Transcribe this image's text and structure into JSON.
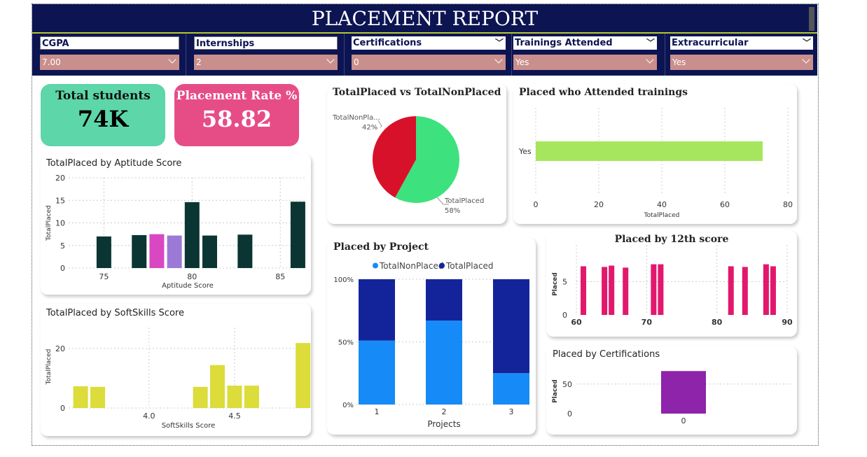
{
  "header": {
    "title": "PLACEMENT REPORT"
  },
  "slicers": [
    {
      "label": "CGPA",
      "value": "7.00"
    },
    {
      "label": "Internships",
      "value": "2"
    },
    {
      "label": "Certifications",
      "value": "0"
    },
    {
      "label": "Trainings Attended",
      "value": "Yes"
    },
    {
      "label": "Extracurricular",
      "value": "Yes"
    }
  ],
  "kpis": {
    "total_students": {
      "title": "Total students",
      "value": "74K",
      "color": "#5dd6a9"
    },
    "placement_rate": {
      "title": "Placement Rate %",
      "value": "58.82",
      "color": "#e64d87"
    }
  },
  "charts": {
    "aptitude": {
      "title": "TotalPlaced by Aptitude Score"
    },
    "softskills": {
      "title": "TotalPlaced by SoftSkills Score"
    },
    "pie": {
      "title": "TotalPlaced vs TotalNonPlaced"
    },
    "trainings": {
      "title": "Placed who Attended trainings"
    },
    "project": {
      "title": "Placed by Project"
    },
    "twelfth": {
      "title": "Placed by 12th score"
    },
    "certs": {
      "title": "Placed by Certifications"
    }
  },
  "chart_data": [
    {
      "id": "aptitude",
      "type": "bar",
      "title": "TotalPlaced by Aptitude Score",
      "xlabel": "Aptitude Score",
      "ylabel": "TotalPlaced",
      "xlim": [
        73,
        86.5
      ],
      "ylim": [
        0,
        20
      ],
      "yticks": [
        0,
        5,
        10,
        15,
        20
      ],
      "xticks": [
        75,
        80,
        85
      ],
      "x": [
        75,
        77,
        78,
        79,
        80,
        81,
        83,
        86
      ],
      "values": [
        7,
        7.3,
        7.5,
        7.2,
        14.6,
        7.2,
        7.4,
        14.7
      ],
      "colors": [
        "#0b3532",
        "#0b3532",
        "#d947c3",
        "#9b7ad6",
        "#0b3532",
        "#0b3532",
        "#0b3532",
        "#0b3532"
      ]
    },
    {
      "id": "softskills",
      "type": "bar",
      "title": "TotalPlaced by SoftSkills Score",
      "xlabel": "SoftSkills Score",
      "ylabel": "TotalPlaced",
      "xlim": [
        3.53,
        4.93
      ],
      "ylim": [
        0,
        27
      ],
      "yticks": [
        0,
        20
      ],
      "xticks": [
        "4.0",
        "4.5"
      ],
      "x": [
        3.6,
        3.7,
        4.3,
        4.4,
        4.5,
        4.6,
        4.9
      ],
      "values": [
        7.3,
        7.1,
        7.1,
        14.4,
        7.5,
        7.5,
        21.8
      ],
      "colors": [
        "#dcdc3a"
      ]
    },
    {
      "id": "pie",
      "type": "pie",
      "title": "TotalPlaced vs TotalNonPlaced",
      "slices": [
        {
          "label": "TotalPlaced",
          "value": 58,
          "display": "58%",
          "color": "#3de27e"
        },
        {
          "label": "TotalNonPla...",
          "value": 42,
          "display": "42%",
          "color": "#d8112b"
        }
      ]
    },
    {
      "id": "trainings",
      "type": "bar",
      "orientation": "horizontal",
      "title": "Placed who Attended trainings",
      "xlabel": "TotalPlaced",
      "categories": [
        "Yes"
      ],
      "values": [
        72
      ],
      "xlim": [
        0,
        80
      ],
      "xticks": [
        0,
        20,
        40,
        60,
        80
      ],
      "colors": [
        "#a6e65f"
      ]
    },
    {
      "id": "project",
      "type": "bar",
      "stacked": "percent",
      "title": "Placed by Project",
      "xlabel": "Projects",
      "categories": [
        "1",
        "2",
        "3"
      ],
      "yticks": [
        "0%",
        "50%",
        "100%"
      ],
      "series": [
        {
          "name": "TotalNonPlaced",
          "values": [
            51,
            67,
            25
          ],
          "color": "#168bf7"
        },
        {
          "name": "TotalPlaced",
          "values": [
            49,
            33,
            75
          ],
          "color": "#13249b"
        }
      ]
    },
    {
      "id": "twelfth",
      "type": "bar",
      "title": "Placed by 12th score",
      "ylabel": "Placed",
      "xlim": [
        60,
        90
      ],
      "ylim": [
        0,
        10.5
      ],
      "xticks": [
        60,
        70,
        80,
        90
      ],
      "yticks": [
        0,
        5
      ],
      "x": [
        61,
        64,
        65,
        67,
        71,
        72,
        82,
        84,
        87,
        88
      ],
      "values": [
        7.3,
        7.2,
        7.4,
        7.1,
        7.6,
        7.6,
        7.3,
        7.2,
        7.6,
        7.3
      ],
      "colors": [
        "#e2186d"
      ]
    },
    {
      "id": "certs",
      "type": "bar",
      "title": "Placed by Certifications",
      "ylabel": "Placed",
      "categories": [
        "0"
      ],
      "values": [
        72
      ],
      "ylim": [
        0,
        90
      ],
      "yticks": [
        0,
        50
      ],
      "colors": [
        "#8e24aa"
      ]
    }
  ]
}
